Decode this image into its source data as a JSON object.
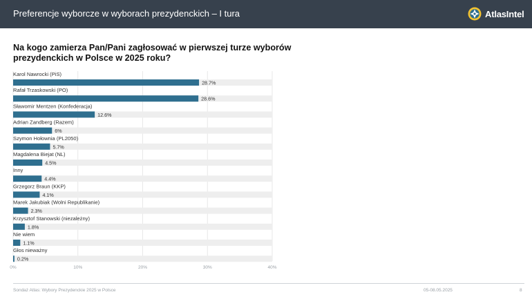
{
  "header": {
    "title": "Preferencje wyborcze w wyborach prezydenckich – I tura",
    "brand": "AtlasIntel",
    "brand_icon": "atlasintel-logo-icon"
  },
  "question": "Na kogo zamierza Pan/Pani zagłosować w pierwszej turze wyborów prezydenckich w Polsce w 2025 roku?",
  "footer": {
    "source": "Sondaż Atlas: Wybory Prezydenckie 2025 w Polsce",
    "date": "05-08.05.2025",
    "page": "8"
  },
  "colors": {
    "header_bg": "#37414d",
    "bar": "#2f6f8f",
    "track": "#eeeeee"
  },
  "chart_data": {
    "type": "bar",
    "orientation": "horizontal",
    "categories": [
      "Karol Nawrocki (PiS)",
      "Rafał Trzaskowski (PO)",
      "Sławomir Mentzen (Konfederacja)",
      "Adrian Zandberg (Razem)",
      "Szymon Hołownia (PL2050)",
      "Magdalena Biejat (NL)",
      "Inny",
      "Grzegorz Braun (KKP)",
      "Marek Jakubiak (Wolni Republikanie)",
      "Krzysztof Stanowski (niezależny)",
      "Nie wiem",
      "Głos nieważny"
    ],
    "values": [
      28.7,
      28.6,
      12.6,
      6,
      5.7,
      4.5,
      4.4,
      4.1,
      2.3,
      1.8,
      1.1,
      0.2
    ],
    "value_labels": [
      "28.7%",
      "28.6%",
      "12.6%",
      "6%",
      "5.7%",
      "4.5%",
      "4.4%",
      "4.1%",
      "2.3%",
      "1.8%",
      "1.1%",
      "0.2%"
    ],
    "xlim": [
      0,
      40
    ],
    "xticks": [
      0,
      10,
      20,
      30,
      40
    ],
    "xtick_labels": [
      "0%",
      "10%",
      "20%",
      "30%",
      "40%"
    ],
    "grid": true,
    "legend": false
  }
}
